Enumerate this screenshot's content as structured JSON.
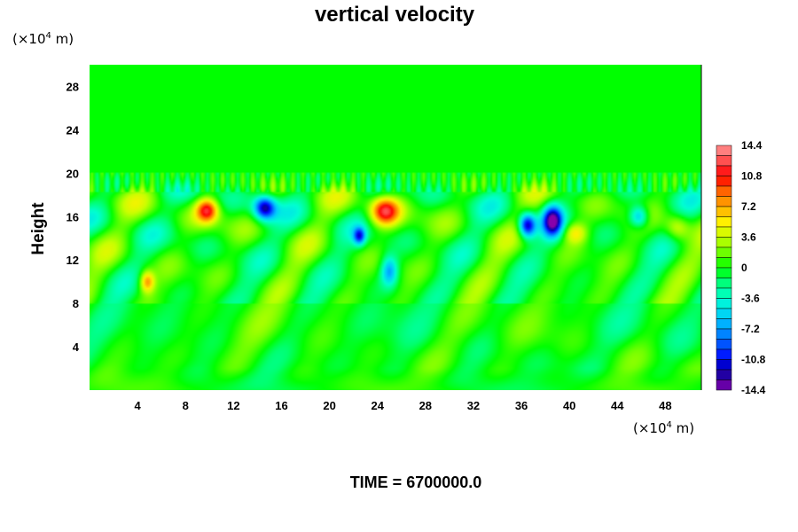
{
  "chart_data": {
    "type": "heatmap",
    "title": "vertical velocity",
    "ylabel": "Height",
    "x_unit": {
      "base": "(×10",
      "exp": "4",
      "rest": " m)"
    },
    "y_unit": {
      "base": "(×10",
      "exp": "4",
      "rest": " m)"
    },
    "xlim": [
      0,
      51
    ],
    "ylim": [
      0,
      30
    ],
    "x_ticks": [
      4,
      8,
      12,
      16,
      20,
      24,
      28,
      32,
      36,
      40,
      44,
      48
    ],
    "y_ticks": [
      4,
      8,
      12,
      16,
      20,
      24,
      28
    ],
    "colorbar": {
      "range": [
        -14.4,
        14.4
      ],
      "tick_labels": [
        "14.4",
        "10.8",
        "7.2",
        "3.6",
        "0",
        "-3.6",
        "-7.2",
        "-10.8",
        "-14.4"
      ],
      "tick_values": [
        14.4,
        10.8,
        7.2,
        3.6,
        0,
        -3.6,
        -7.2,
        -10.8,
        -14.4
      ],
      "levels": 24
    },
    "features": [
      {
        "x": 9.8,
        "y": 16.6,
        "value": 10.5,
        "sx": 0.9,
        "sy": 1.1
      },
      {
        "x": 14.6,
        "y": 16.8,
        "value": -12.0,
        "sx": 0.9,
        "sy": 1.1
      },
      {
        "x": 24.6,
        "y": 16.5,
        "value": 11.0,
        "sx": 1.2,
        "sy": 1.3
      },
      {
        "x": 22.5,
        "y": 14.2,
        "value": -9.0,
        "sx": 0.5,
        "sy": 0.8
      },
      {
        "x": 25.0,
        "y": 11.0,
        "value": -7.0,
        "sx": 0.7,
        "sy": 1.4
      },
      {
        "x": 36.5,
        "y": 15.2,
        "value": -12.5,
        "sx": 0.7,
        "sy": 1.1
      },
      {
        "x": 38.6,
        "y": 15.6,
        "value": -13.0,
        "sx": 0.8,
        "sy": 1.4
      },
      {
        "x": 45.8,
        "y": 16.0,
        "value": -7.5,
        "sx": 0.8,
        "sy": 1.0
      },
      {
        "x": 4.8,
        "y": 10.0,
        "value": 7.5,
        "sx": 0.6,
        "sy": 1.0
      },
      {
        "x": 40.5,
        "y": 14.5,
        "value": 5.5,
        "sx": 1.0,
        "sy": 1.0
      },
      {
        "x": 49.0,
        "y": 15.0,
        "value": 5.0,
        "sx": 1.0,
        "sy": 1.2
      }
    ],
    "grid": false,
    "legend": "right"
  },
  "footer": {
    "time_label": "TIME = 6700000.0"
  }
}
